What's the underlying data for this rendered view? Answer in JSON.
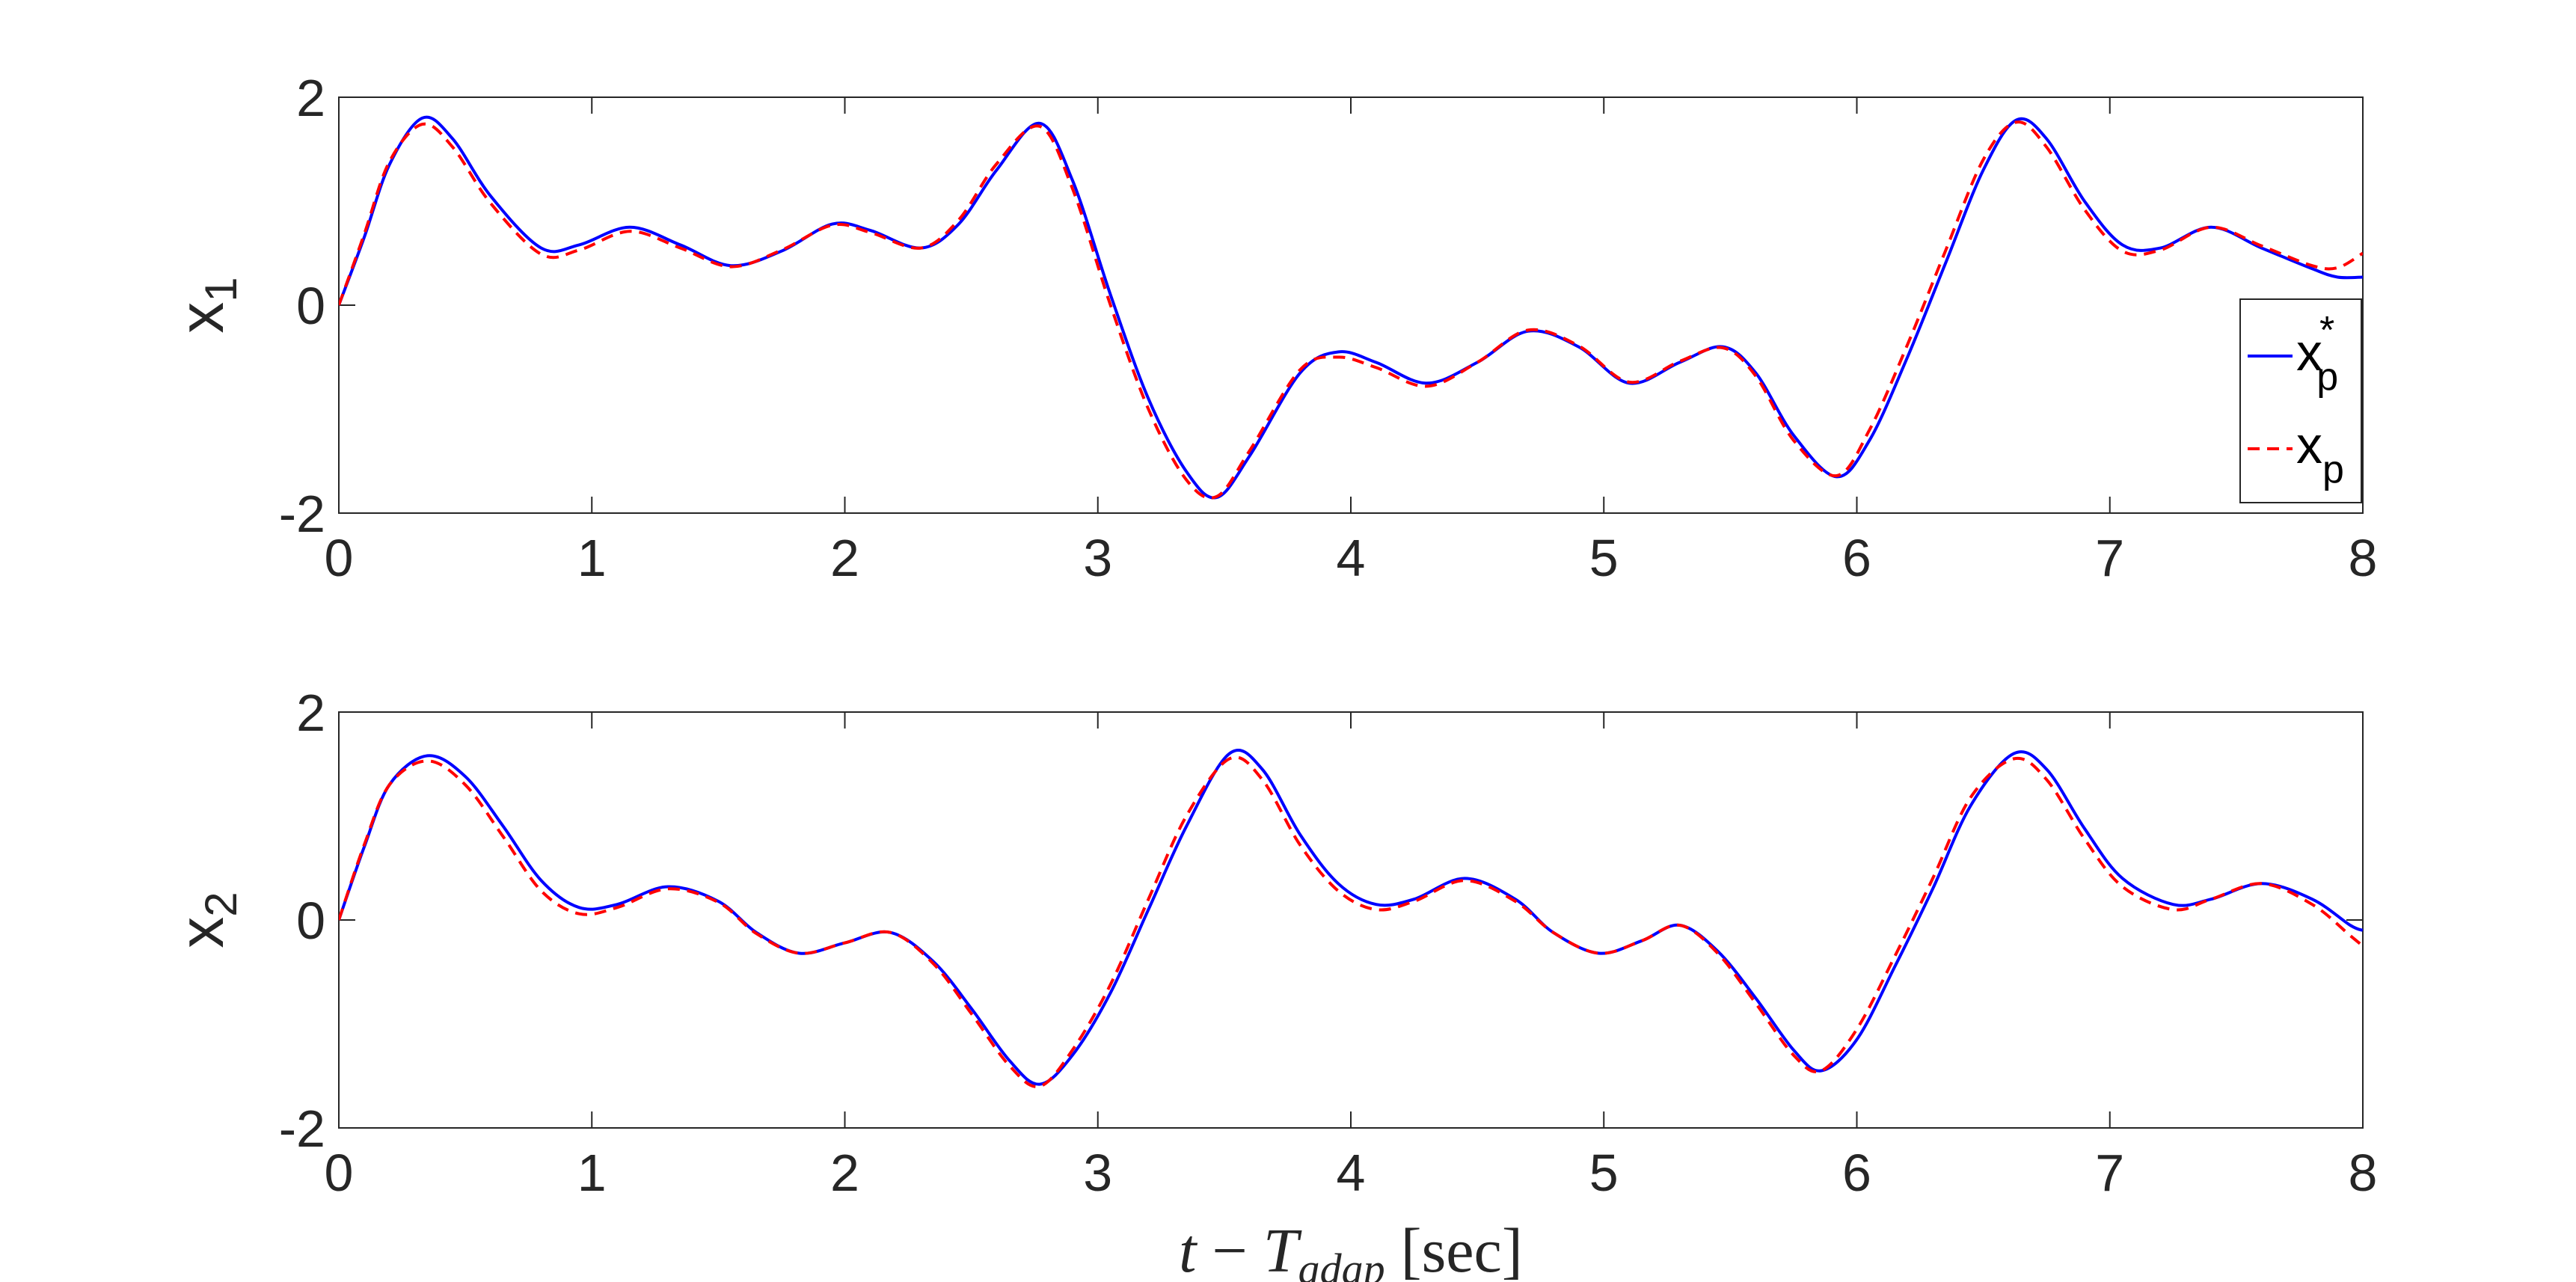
{
  "chart_data": [
    {
      "type": "line",
      "ylabel": "x",
      "ylabel_subscript": "1",
      "xlim": [
        0,
        8
      ],
      "ylim": [
        -2,
        2
      ],
      "xticks": [
        0,
        1,
        2,
        3,
        4,
        5,
        6,
        7,
        8
      ],
      "yticks": [
        -2,
        0,
        2
      ],
      "xtick_labels": [
        "0",
        "1",
        "2",
        "3",
        "4",
        "5",
        "6",
        "7",
        "8"
      ],
      "ytick_labels": [
        "-2",
        "0",
        "2"
      ],
      "grid": false,
      "legend": {
        "placement": "right",
        "entries": [
          {
            "base": "x",
            "sub": "p",
            "sup": "*",
            "color": "#0000ff",
            "style": "solid"
          },
          {
            "base": "x",
            "sub": "p",
            "sup": "",
            "color": "#ff0000",
            "style": "dashed"
          }
        ]
      },
      "series": [
        {
          "color": "#0000ff",
          "style": "solid",
          "x": [
            0,
            0.1,
            0.2,
            0.33,
            0.45,
            0.6,
            0.8,
            0.95,
            1.15,
            1.35,
            1.55,
            1.75,
            1.95,
            2.1,
            2.3,
            2.45,
            2.6,
            2.77,
            2.9,
            3.05,
            3.2,
            3.35,
            3.47,
            3.6,
            3.8,
            3.95,
            4.1,
            4.3,
            4.5,
            4.7,
            4.9,
            5.1,
            5.3,
            5.47,
            5.6,
            5.75,
            5.92,
            6.05,
            6.2,
            6.35,
            6.5,
            6.63,
            6.75,
            6.9,
            7.05,
            7.2,
            7.4,
            7.6,
            7.8,
            7.9,
            8.0
          ],
          "y": [
            0,
            0.65,
            1.35,
            1.8,
            1.6,
            1.05,
            0.55,
            0.58,
            0.75,
            0.58,
            0.38,
            0.52,
            0.78,
            0.72,
            0.55,
            0.78,
            1.3,
            1.75,
            1.2,
            0.1,
            -0.9,
            -1.6,
            -1.85,
            -1.45,
            -0.65,
            -0.45,
            -0.55,
            -0.75,
            -0.55,
            -0.25,
            -0.4,
            -0.75,
            -0.55,
            -0.4,
            -0.65,
            -1.25,
            -1.65,
            -1.3,
            -0.5,
            0.4,
            1.3,
            1.78,
            1.6,
            1.0,
            0.58,
            0.55,
            0.75,
            0.55,
            0.35,
            0.27,
            0.27
          ]
        },
        {
          "color": "#ff0000",
          "style": "dashed",
          "x": [
            0,
            0.1,
            0.2,
            0.33,
            0.45,
            0.6,
            0.8,
            0.95,
            1.15,
            1.35,
            1.55,
            1.75,
            1.95,
            2.1,
            2.3,
            2.45,
            2.6,
            2.77,
            2.9,
            3.05,
            3.2,
            3.35,
            3.47,
            3.6,
            3.8,
            3.95,
            4.1,
            4.3,
            4.5,
            4.7,
            4.9,
            5.1,
            5.3,
            5.47,
            5.6,
            5.75,
            5.92,
            6.05,
            6.2,
            6.35,
            6.5,
            6.63,
            6.75,
            6.9,
            7.05,
            7.2,
            7.4,
            7.6,
            7.8,
            7.9,
            8.0
          ],
          "y": [
            0,
            0.68,
            1.38,
            1.74,
            1.52,
            0.98,
            0.49,
            0.53,
            0.71,
            0.55,
            0.37,
            0.53,
            0.77,
            0.7,
            0.55,
            0.82,
            1.36,
            1.72,
            1.12,
            0.0,
            -1.0,
            -1.68,
            -1.84,
            -1.4,
            -0.62,
            -0.5,
            -0.6,
            -0.78,
            -0.55,
            -0.24,
            -0.39,
            -0.74,
            -0.54,
            -0.41,
            -0.68,
            -1.3,
            -1.64,
            -1.2,
            -0.38,
            0.52,
            1.4,
            1.76,
            1.52,
            0.92,
            0.52,
            0.53,
            0.75,
            0.57,
            0.38,
            0.36,
            0.5
          ]
        }
      ]
    },
    {
      "type": "line",
      "ylabel": "x",
      "ylabel_subscript": "2",
      "xlabel_parts": {
        "t": "t",
        "minus": " − ",
        "T": "T",
        "sub": "adap",
        "unit": " [sec]"
      },
      "xlim": [
        0,
        8
      ],
      "ylim": [
        -2,
        2
      ],
      "xticks": [
        0,
        1,
        2,
        3,
        4,
        5,
        6,
        7,
        8
      ],
      "yticks": [
        -2,
        0,
        2
      ],
      "xtick_labels": [
        "0",
        "1",
        "2",
        "3",
        "4",
        "5",
        "6",
        "7",
        "8"
      ],
      "ytick_labels": [
        "-2",
        "0",
        "2"
      ],
      "grid": false,
      "series": [
        {
          "color": "#0000ff",
          "style": "solid",
          "x": [
            0,
            0.1,
            0.2,
            0.35,
            0.5,
            0.65,
            0.8,
            0.95,
            1.1,
            1.3,
            1.5,
            1.65,
            1.82,
            2.0,
            2.18,
            2.35,
            2.5,
            2.65,
            2.77,
            2.9,
            3.05,
            3.2,
            3.35,
            3.52,
            3.65,
            3.8,
            3.95,
            4.1,
            4.25,
            4.45,
            4.65,
            4.8,
            4.98,
            5.15,
            5.3,
            5.45,
            5.6,
            5.75,
            5.86,
            6.0,
            6.15,
            6.3,
            6.45,
            6.62,
            6.75,
            6.9,
            7.05,
            7.25,
            7.4,
            7.6,
            7.8,
            7.95,
            8.0
          ],
          "y": [
            0,
            0.7,
            1.3,
            1.58,
            1.38,
            0.9,
            0.38,
            0.12,
            0.15,
            0.32,
            0.18,
            -0.12,
            -0.32,
            -0.22,
            -0.12,
            -0.4,
            -0.85,
            -1.35,
            -1.58,
            -1.3,
            -0.7,
            0.1,
            0.9,
            1.6,
            1.45,
            0.82,
            0.35,
            0.15,
            0.2,
            0.4,
            0.2,
            -0.12,
            -0.32,
            -0.2,
            -0.05,
            -0.3,
            -0.75,
            -1.25,
            -1.45,
            -1.15,
            -0.45,
            0.3,
            1.1,
            1.6,
            1.45,
            0.88,
            0.4,
            0.15,
            0.2,
            0.35,
            0.2,
            -0.05,
            -0.1
          ]
        },
        {
          "color": "#ff0000",
          "style": "dashed",
          "x": [
            0,
            0.1,
            0.2,
            0.35,
            0.5,
            0.65,
            0.8,
            0.95,
            1.1,
            1.3,
            1.5,
            1.65,
            1.82,
            2.0,
            2.18,
            2.35,
            2.5,
            2.65,
            2.77,
            2.9,
            3.05,
            3.2,
            3.35,
            3.52,
            3.65,
            3.8,
            3.95,
            4.1,
            4.25,
            4.45,
            4.65,
            4.8,
            4.98,
            5.15,
            5.3,
            5.45,
            5.6,
            5.75,
            5.86,
            6.0,
            6.15,
            6.3,
            6.45,
            6.62,
            6.75,
            6.9,
            7.05,
            7.25,
            7.4,
            7.6,
            7.8,
            7.95,
            8.0
          ],
          "y": [
            0,
            0.72,
            1.3,
            1.53,
            1.3,
            0.8,
            0.28,
            0.06,
            0.12,
            0.3,
            0.17,
            -0.13,
            -0.32,
            -0.22,
            -0.12,
            -0.42,
            -0.9,
            -1.4,
            -1.6,
            -1.25,
            -0.62,
            0.2,
            1.0,
            1.55,
            1.35,
            0.72,
            0.28,
            0.1,
            0.18,
            0.38,
            0.18,
            -0.12,
            -0.32,
            -0.2,
            -0.05,
            -0.32,
            -0.8,
            -1.3,
            -1.45,
            -1.05,
            -0.35,
            0.4,
            1.18,
            1.55,
            1.35,
            0.78,
            0.32,
            0.1,
            0.2,
            0.35,
            0.15,
            -0.15,
            -0.25
          ]
        }
      ]
    }
  ]
}
